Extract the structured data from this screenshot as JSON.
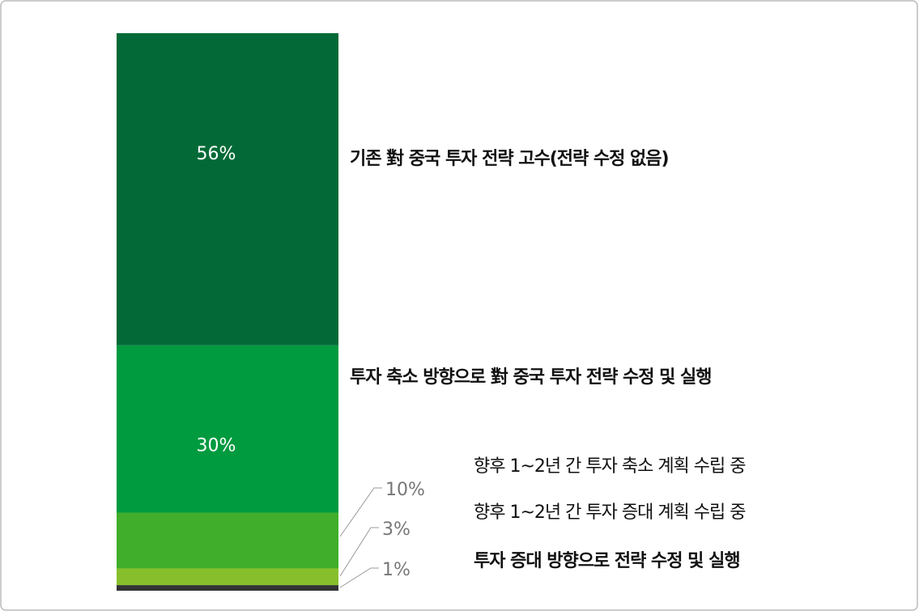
{
  "chart_data": {
    "type": "stacked-bar",
    "categories": [
      "기존  對 중국 투자 전략 고수(전략 수정 없음)",
      "투자 축소 방향으로 對 중국 투자 전략 수정 및 실행",
      "향후 1~2년 간 투자 축소 계획 수립 중",
      "향후 1~2년 간 투자 증대 계획 수립 중",
      "투자 증대  방향으로 전략 수정 및 실행"
    ],
    "values": [
      56,
      30,
      10,
      3,
      1
    ],
    "value_labels": [
      "56%",
      "30%",
      "10%",
      "3%",
      "1%"
    ],
    "colors": [
      "#036a37",
      "#009a3f",
      "#40ae2b",
      "#86bf2b",
      "#333333"
    ],
    "ylim": [
      0,
      100
    ]
  }
}
